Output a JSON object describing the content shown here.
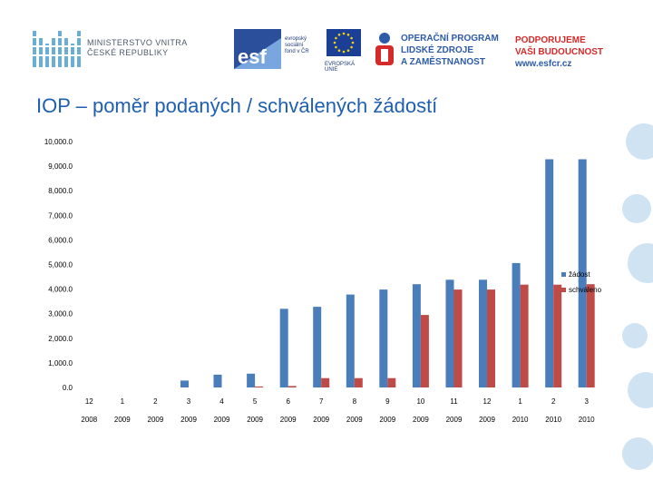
{
  "header": {
    "ministry_line1": "MINISTERSTVO VNITRA",
    "ministry_line2": "ČESKÉ REPUBLIKY",
    "esf_logo_letters": "esf",
    "esf_text": [
      "evropský",
      "sociální",
      "fond v ČR"
    ],
    "eu_text": "EVROPSKÁ UNIE",
    "op_lines": [
      "OPERAČNÍ PROGRAM",
      "LIDSKÉ ZDROJE",
      "A ZAMĚSTNANOST"
    ],
    "support_lines": [
      "PODPORUJEME",
      "VAŠI BUDOUCNOST"
    ],
    "support_url": "www.esfcr.cz"
  },
  "slide": {
    "title": "IOP – poměr podaných / schválených žádostí"
  },
  "colors": {
    "title": "#1f5fb0",
    "series1": "#4a7ebb",
    "series2": "#be4b48",
    "bubbles": "#cfe3f2"
  },
  "chart_data": {
    "type": "bar",
    "title": "",
    "xlabel": "",
    "ylabel": "",
    "ylim": [
      0,
      10000
    ],
    "yticks": [
      "0.0",
      "1,000.0",
      "2,000.0",
      "3,000.0",
      "4,000.0",
      "5,000.0",
      "6,000.0",
      "7,000.0",
      "8,000.0",
      "9,000.0",
      "10,000.0"
    ],
    "ytick_values": [
      0,
      1000,
      2000,
      3000,
      4000,
      5000,
      6000,
      7000,
      8000,
      9000,
      10000
    ],
    "categories": [
      "12",
      "1",
      "2",
      "3",
      "4",
      "5",
      "6",
      "7",
      "8",
      "9",
      "10",
      "11",
      "12",
      "1",
      "2",
      "3"
    ],
    "years": [
      "2008",
      "2009",
      "2009",
      "2009",
      "2009",
      "2009",
      "2009",
      "2009",
      "2009",
      "2009",
      "2009",
      "2009",
      "2009",
      "2010",
      "2010",
      "2010"
    ],
    "legend_position": "right",
    "series": [
      {
        "name": "žádost",
        "values": [
          0,
          0,
          0,
          280,
          520,
          560,
          3200,
          3280,
          3780,
          3980,
          4200,
          4380,
          4380,
          5060,
          9280,
          9280
        ]
      },
      {
        "name": "schváleno",
        "values": [
          0,
          0,
          0,
          0,
          0,
          40,
          60,
          380,
          380,
          380,
          2950,
          3980,
          3980,
          4180,
          4180,
          4200
        ]
      }
    ]
  }
}
